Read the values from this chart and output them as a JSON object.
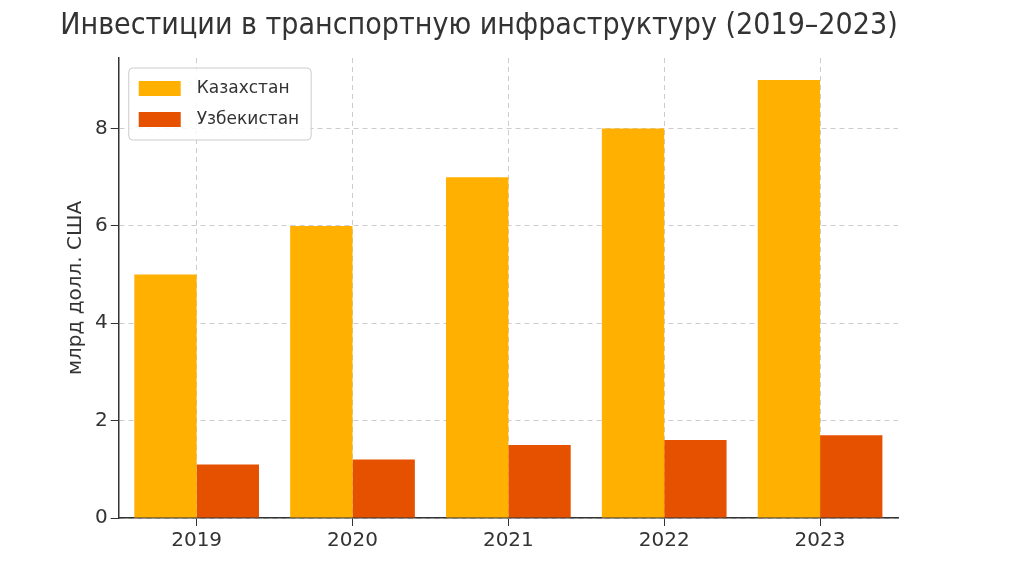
{
  "chart_data": {
    "type": "bar",
    "title": "Инвестиции в транспортную инфраструктуру (2019–2023)",
    "ylabel": "млрд долл. США",
    "categories": [
      "2019",
      "2020",
      "2021",
      "2022",
      "2023"
    ],
    "series": [
      {
        "name": "Казахстан",
        "color": "#ffb000",
        "values": [
          5,
          6,
          7,
          8,
          9
        ]
      },
      {
        "name": "Узбекистан",
        "color": "#e65100",
        "values": [
          1.1,
          1.2,
          1.5,
          1.6,
          1.7
        ]
      }
    ],
    "ylim": [
      0,
      9.45
    ],
    "yticks": [
      0,
      2,
      4,
      6,
      8
    ],
    "grid": true,
    "legend": "top left"
  }
}
